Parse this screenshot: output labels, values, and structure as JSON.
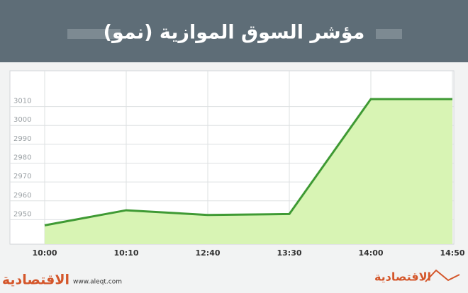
{
  "chart_data": {
    "type": "area",
    "title": "مؤشر السوق الموازية (نمو)",
    "categories": [
      "10:00",
      "10:10",
      "12:40",
      "13:30",
      "14:00",
      "14:50"
    ],
    "values": [
      2947,
      2955,
      2952.5,
      2953,
      3014,
      3014
    ],
    "color": "#3f9a34",
    "fill": "#d8f4b4",
    "ylim": [
      2937,
      3029
    ],
    "yticks": [
      2950,
      2960,
      2970,
      2980,
      2990,
      3000,
      3010
    ],
    "grid": true,
    "website": "www.aleqt.com",
    "logo": "الاقتصادية"
  }
}
